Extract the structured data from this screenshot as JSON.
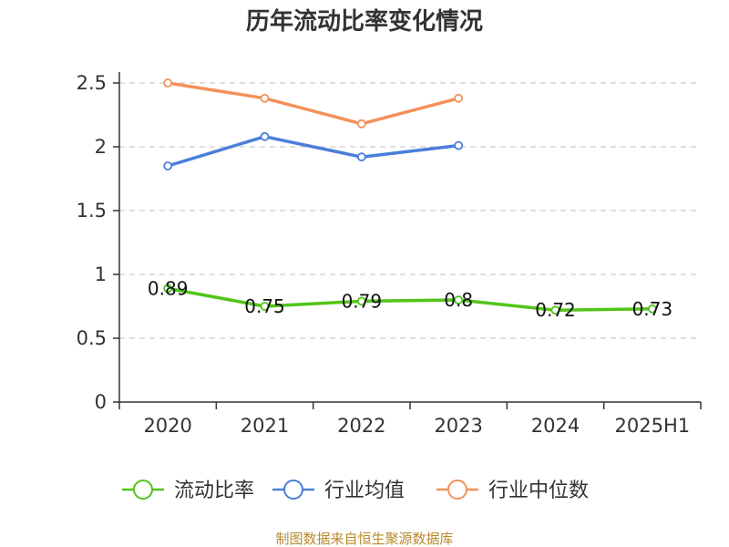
{
  "chart_data": {
    "type": "line",
    "title": "历年流动比率变化情况",
    "categories": [
      "2020",
      "2021",
      "2022",
      "2023",
      "2024",
      "2025H1"
    ],
    "ylim": [
      0,
      2.5
    ],
    "yticks": [
      "0",
      "0.5",
      "1",
      "1.5",
      "2",
      "2.5"
    ],
    "grid": true,
    "legend_position": "bottom",
    "series": [
      {
        "name": "流动比率",
        "color": "#52c41a",
        "values": [
          0.89,
          0.75,
          0.79,
          0.8,
          0.72,
          0.73
        ],
        "labels": [
          "0.89",
          "0.75",
          "0.79",
          "0.8",
          "0.72",
          "0.73"
        ]
      },
      {
        "name": "行业均值",
        "color": "#4a7fd9",
        "values": [
          1.85,
          2.08,
          1.92,
          2.01,
          null,
          null
        ]
      },
      {
        "name": "行业中位数",
        "color": "#f5915a",
        "values": [
          2.5,
          2.38,
          2.18,
          2.38,
          null,
          null
        ]
      }
    ]
  },
  "source": "制图数据来自恒生聚源数据库"
}
